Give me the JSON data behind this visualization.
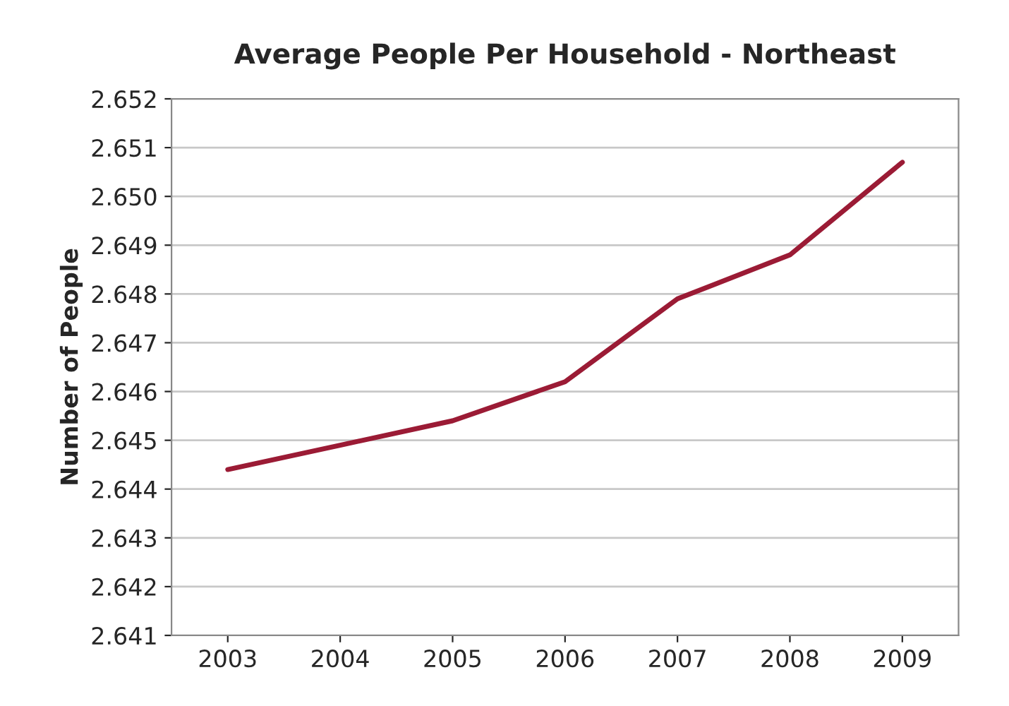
{
  "chart_data": {
    "type": "line",
    "title": "Average People Per Household - Northeast",
    "ylabel": "Number of People",
    "categories": [
      "2003",
      "2004",
      "2005",
      "2006",
      "2007",
      "2008",
      "2009"
    ],
    "series": [
      {
        "color": "#9b1b35",
        "values": [
          2.6444,
          2.6449,
          2.6454,
          2.6462,
          2.6479,
          2.6488,
          2.6507
        ]
      }
    ],
    "ylim": [
      2.641,
      2.652
    ],
    "yticks": [
      {
        "value": 2.641,
        "label": "2.641"
      },
      {
        "value": 2.642,
        "label": "2.642"
      },
      {
        "value": 2.643,
        "label": "2.643"
      },
      {
        "value": 2.644,
        "label": "2.644"
      },
      {
        "value": 2.645,
        "label": "2.645"
      },
      {
        "value": 2.646,
        "label": "2.646"
      },
      {
        "value": 2.647,
        "label": "2.647"
      },
      {
        "value": 2.648,
        "label": "2.648"
      },
      {
        "value": 2.649,
        "label": "2.649"
      },
      {
        "value": 2.65,
        "label": "2.650"
      },
      {
        "value": 2.651,
        "label": "2.651"
      },
      {
        "value": 2.652,
        "label": "2.652"
      }
    ],
    "grid": "y",
    "marker": "none",
    "line_style": "solid",
    "legend": false
  }
}
